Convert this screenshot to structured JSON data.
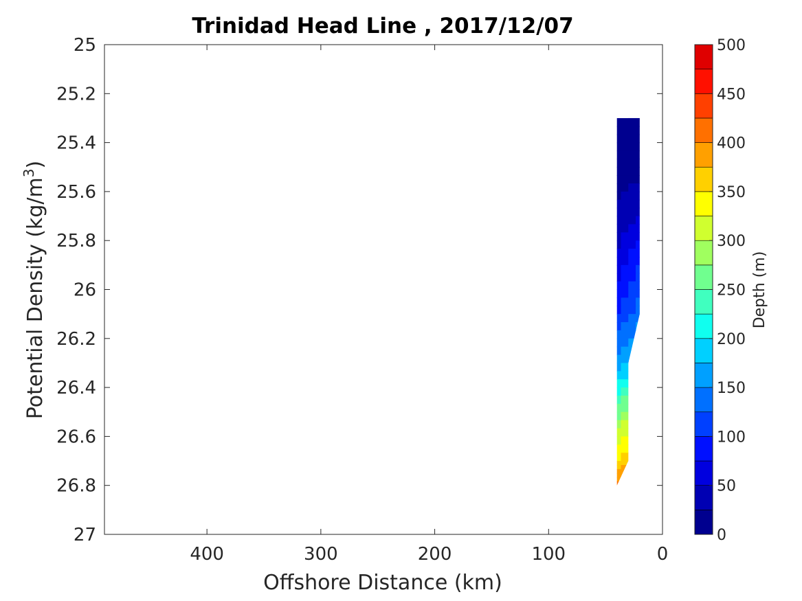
{
  "chart_data": {
    "type": "contour",
    "title": "Trinidad Head Line , 2017/12/07",
    "xlabel": "Offshore Distance (km)",
    "ylabel_main": "Potential Density (kg/m",
    "ylabel_sup": "3",
    "ylabel_end": ")",
    "xlim": [
      490,
      0
    ],
    "ylim": [
      25,
      27
    ],
    "x_reversed": true,
    "y_reversed": true,
    "xticks": [
      400,
      300,
      200,
      100,
      0
    ],
    "yticks": [
      25,
      25.2,
      25.4,
      25.6,
      25.8,
      26,
      26.2,
      26.4,
      26.6,
      26.8,
      27
    ],
    "ytick_labels": [
      "25",
      "25.2",
      "25.4",
      "25.6",
      "25.8",
      "26",
      "26.2",
      "26.4",
      "26.6",
      "26.8",
      "27"
    ],
    "colorbar": {
      "label": "Depth (m)",
      "range": [
        0,
        500
      ],
      "ticks": [
        0,
        50,
        100,
        150,
        200,
        250,
        300,
        350,
        400,
        450,
        500
      ],
      "levels": [
        0,
        25,
        50,
        75,
        100,
        125,
        150,
        175,
        200,
        225,
        250,
        275,
        300,
        325,
        350,
        375,
        400,
        425,
        450,
        475,
        500
      ],
      "colors": [
        "#00008f",
        "#0000b3",
        "#0000df",
        "#0010ff",
        "#0040ff",
        "#0070ff",
        "#00a0ff",
        "#00d0ff",
        "#10ffef",
        "#40ffbf",
        "#70ff8f",
        "#a0ff5f",
        "#d0ff2f",
        "#ffff00",
        "#ffd000",
        "#ffa000",
        "#ff7000",
        "#ff4000",
        "#ff1000",
        "#df0000"
      ]
    },
    "section": {
      "stations_km": [
        40,
        30,
        20
      ],
      "outline": [
        [
          40,
          25.3
        ],
        [
          30,
          25.3
        ],
        [
          20,
          25.2
        ],
        [
          20,
          26.1
        ],
        [
          30,
          26.3
        ],
        [
          30,
          26.7
        ],
        [
          40,
          26.8
        ]
      ],
      "depth_grid": [
        {
          "density": 25.3,
          "depths": [
            0,
            0,
            0
          ]
        },
        {
          "density": 25.5,
          "depths": [
            10,
            15,
            15
          ]
        },
        {
          "density": 25.7,
          "depths": [
            30,
            40,
            50
          ]
        },
        {
          "density": 25.9,
          "depths": [
            55,
            80,
            105
          ]
        },
        {
          "density": 26.1,
          "depths": [
            95,
            120,
            150
          ]
        },
        {
          "density": 26.3,
          "depths": [
            160,
            175,
            null
          ]
        },
        {
          "density": 26.5,
          "depths": [
            260,
            285,
            null
          ]
        },
        {
          "density": 26.7,
          "depths": [
            345,
            380,
            null
          ]
        },
        {
          "density": 26.8,
          "depths": [
            410,
            null,
            null
          ]
        }
      ]
    }
  }
}
